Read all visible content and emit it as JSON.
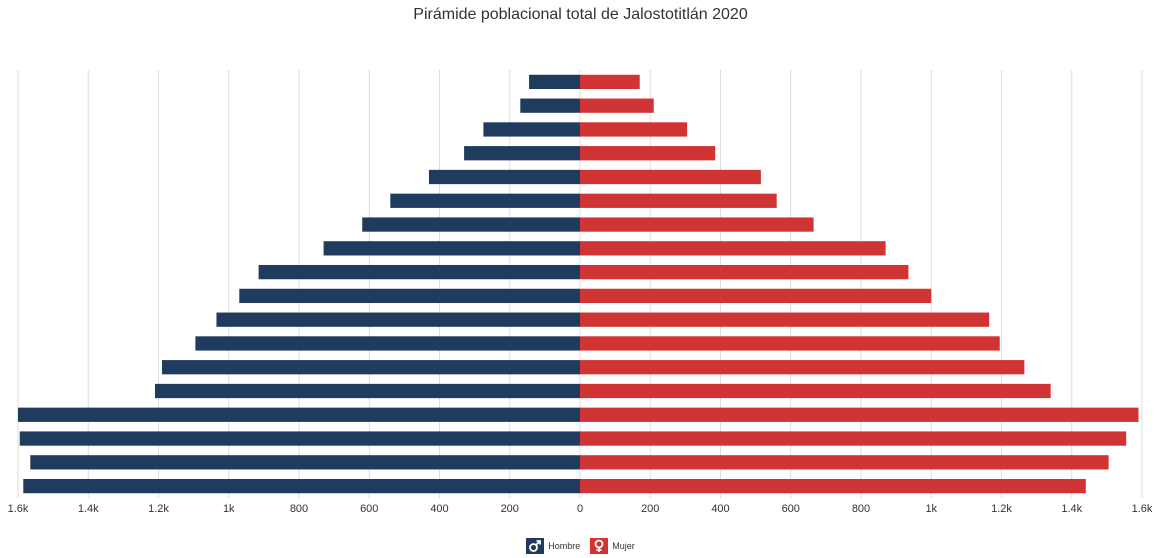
{
  "chart_data": {
    "type": "bar",
    "title": "Pirámide poblacional total de Jalostotitlán 2020",
    "x_tick_labels": [
      "1.6k",
      "1.4k",
      "1.2k",
      "1k",
      "800",
      "600",
      "400",
      "200",
      "0",
      "200",
      "400",
      "600",
      "800",
      "1k",
      "1.2k",
      "1.4k",
      "1.6k"
    ],
    "x_ticks": [
      -1600,
      -1400,
      -1200,
      -1000,
      -800,
      -600,
      -400,
      -200,
      0,
      200,
      400,
      600,
      800,
      1000,
      1200,
      1400,
      1600
    ],
    "xlim": [
      -1600,
      1600
    ],
    "grid": true,
    "legend_position": "bottom",
    "colors": {
      "hombre": "#1f3c5e",
      "mujer": "#d03434",
      "grid": "#dddddd"
    },
    "series": [
      {
        "name": "Hombre",
        "values": [
          145,
          170,
          275,
          330,
          430,
          540,
          620,
          730,
          915,
          970,
          1035,
          1095,
          1190,
          1210,
          1600,
          1595,
          1565,
          1585
        ]
      },
      {
        "name": "Mujer",
        "values": [
          170,
          210,
          305,
          385,
          515,
          560,
          665,
          870,
          935,
          1000,
          1165,
          1195,
          1265,
          1340,
          1590,
          1555,
          1505,
          1440
        ]
      }
    ]
  },
  "legend": {
    "hombre": {
      "label": "Hombre",
      "icon": "male-icon"
    },
    "mujer": {
      "label": "Mujer",
      "icon": "female-icon"
    }
  }
}
